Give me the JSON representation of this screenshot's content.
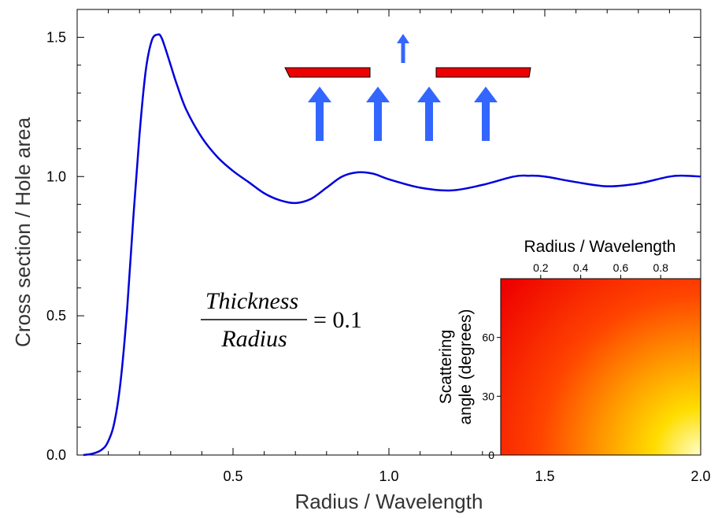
{
  "chart_data": [
    {
      "type": "line",
      "title": "",
      "xlabel": "Radius / Wavelength",
      "ylabel": "Cross section / Hole area",
      "xlim": [
        0,
        2.0
      ],
      "ylim": [
        0,
        1.6
      ],
      "x_ticks": [
        0.5,
        1.0,
        1.5,
        2.0
      ],
      "x_tick_labels": [
        "0.5",
        "1.0",
        "1.5",
        "2.0"
      ],
      "y_ticks": [
        0.0,
        0.5,
        1.0,
        1.5
      ],
      "y_tick_labels": [
        "0.0",
        "0.5",
        "1.0",
        "1.5"
      ],
      "grid": false,
      "line_color": "#0000dd",
      "series": [
        {
          "x": [
            0.02,
            0.05,
            0.08,
            0.1,
            0.12,
            0.14,
            0.16,
            0.18,
            0.2,
            0.22,
            0.24,
            0.26,
            0.27,
            0.28,
            0.3,
            0.32,
            0.35,
            0.4,
            0.45,
            0.5,
            0.55,
            0.6,
            0.65,
            0.7,
            0.75,
            0.8,
            0.85,
            0.9,
            0.95,
            1.0,
            1.1,
            1.2,
            1.3,
            1.4,
            1.45,
            1.5,
            1.6,
            1.7,
            1.8,
            1.9,
            1.95,
            2.0
          ],
          "y": [
            0.0,
            0.005,
            0.02,
            0.05,
            0.12,
            0.27,
            0.52,
            0.85,
            1.15,
            1.38,
            1.49,
            1.51,
            1.5,
            1.47,
            1.4,
            1.33,
            1.24,
            1.14,
            1.07,
            1.02,
            0.98,
            0.94,
            0.915,
            0.905,
            0.92,
            0.96,
            1.0,
            1.015,
            1.01,
            0.99,
            0.96,
            0.95,
            0.97,
            1.0,
            1.003,
            1.0,
            0.98,
            0.965,
            0.975,
            1.0,
            1.003,
            1.0
          ]
        }
      ],
      "annotations": {
        "formula": {
          "numerator": "Thickness",
          "denominator": "Radius",
          "equals": "= 0.1"
        }
      },
      "colors": {
        "plate": "#ee0000",
        "arrows": "#3366ff"
      }
    },
    {
      "type": "heatmap",
      "title": "",
      "xlabel": "Radius / Wavelength",
      "ylabel": "Scattering angle (degrees)",
      "ylabel_lines": [
        "Scattering",
        "angle (degrees)"
      ],
      "xlim": [
        0,
        1.0
      ],
      "ylim": [
        0,
        90
      ],
      "x_ticks": [
        0.2,
        0.4,
        0.6,
        0.8
      ],
      "x_tick_labels": [
        "0.2",
        "0.4",
        "0.6",
        "0.8"
      ],
      "y_ticks": [
        0,
        30,
        60
      ],
      "y_tick_labels": [
        "0",
        "30",
        "60"
      ],
      "colormap": [
        "#ee0000",
        "#ff4400",
        "#ff9900",
        "#ffdd00",
        "#ffffcc"
      ]
    }
  ]
}
